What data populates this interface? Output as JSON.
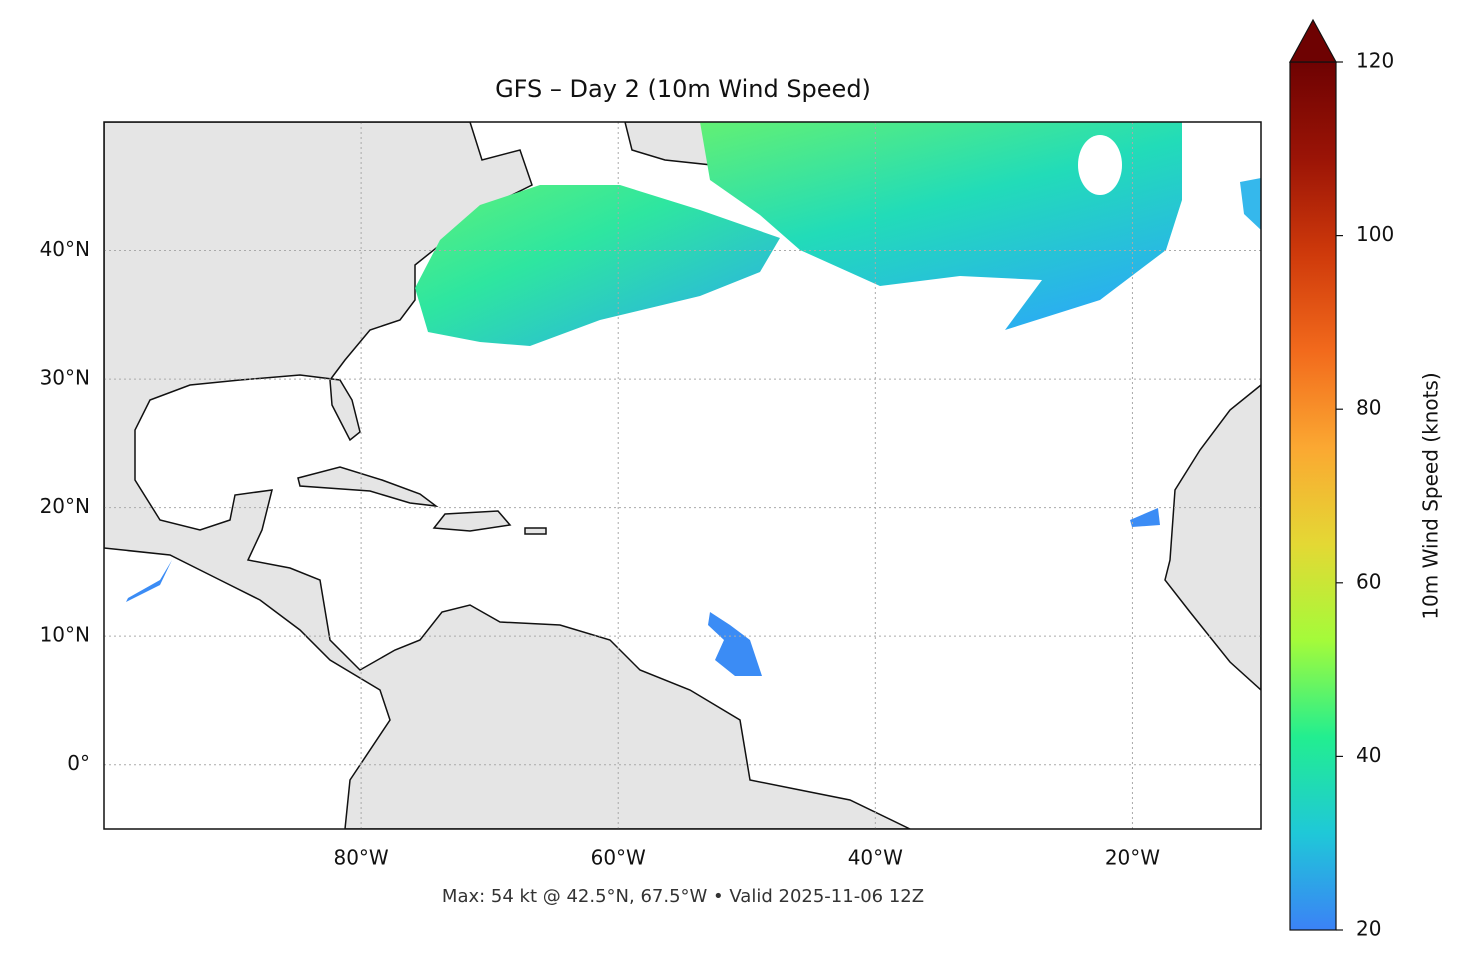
{
  "chart_data": {
    "type": "map",
    "title": "GFS – Day 2 (10m Wind Speed)",
    "footer": "Max: 54 kt @ 42.5°N, 67.5°W • Valid 2025-11-06 12Z",
    "xlim": [
      -100,
      -10
    ],
    "ylim": [
      -5,
      50
    ],
    "xticks": [
      {
        "value": -80,
        "label": "80°W"
      },
      {
        "value": -60,
        "label": "60°W"
      },
      {
        "value": -40,
        "label": "40°W"
      },
      {
        "value": -20,
        "label": "20°W"
      }
    ],
    "yticks": [
      {
        "value": 0,
        "label": "0°"
      },
      {
        "value": 10,
        "label": "10°N"
      },
      {
        "value": 20,
        "label": "20°N"
      },
      {
        "value": 30,
        "label": "30°N"
      },
      {
        "value": 40,
        "label": "40°N"
      }
    ],
    "grid": true,
    "colorbar": {
      "label": "10m Wind Speed (knots)",
      "clim": [
        20,
        120
      ],
      "ticks": [
        20,
        40,
        60,
        80,
        100,
        120
      ],
      "colormap": [
        "#3b82f6",
        "#1fc8d8",
        "#22ee90",
        "#a4fb3a",
        "#e4d834",
        "#fba832",
        "#f26a1c",
        "#cf3a0b",
        "#9b1406",
        "#6e0202"
      ]
    }
  }
}
